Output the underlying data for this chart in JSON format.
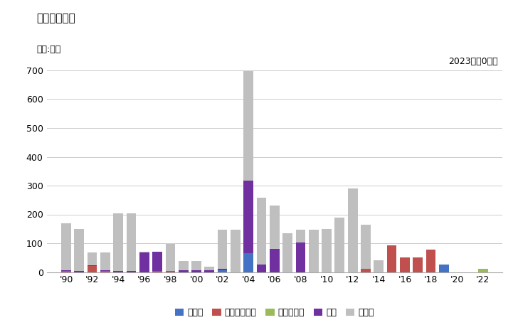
{
  "title": "輸出量の推移",
  "unit_label": "単位:トン",
  "annotation": "2023年：0トン",
  "years": [
    1990,
    1991,
    1992,
    1993,
    1994,
    1995,
    1996,
    1997,
    1998,
    1999,
    2000,
    2001,
    2002,
    2003,
    2004,
    2005,
    2006,
    2007,
    2008,
    2009,
    2010,
    2011,
    2012,
    2013,
    2014,
    2015,
    2016,
    2017,
    2018,
    2019,
    2020,
    2021,
    2022
  ],
  "categories": [
    "インド",
    "インドネシア",
    "カメルーン",
    "タイ",
    "その他"
  ],
  "colors": [
    "#4472C4",
    "#C0504D",
    "#9BBB59",
    "#7030A0",
    "#BFBFBF"
  ],
  "data": {
    "インド": [
      0,
      0,
      0,
      0,
      0,
      0,
      0,
      0,
      0,
      0,
      0,
      0,
      5,
      0,
      65,
      0,
      0,
      0,
      0,
      0,
      0,
      0,
      0,
      0,
      0,
      0,
      0,
      0,
      0,
      25,
      0,
      0,
      0
    ],
    "インドネシア": [
      3,
      0,
      20,
      3,
      0,
      0,
      0,
      3,
      3,
      0,
      0,
      0,
      0,
      0,
      0,
      0,
      0,
      0,
      0,
      0,
      0,
      0,
      0,
      10,
      0,
      93,
      50,
      50,
      78,
      0,
      0,
      0,
      0
    ],
    "カメルーン": [
      0,
      0,
      0,
      0,
      0,
      0,
      0,
      0,
      0,
      0,
      0,
      0,
      0,
      0,
      0,
      0,
      0,
      0,
      0,
      0,
      0,
      0,
      0,
      0,
      0,
      0,
      0,
      0,
      0,
      0,
      0,
      0,
      12
    ],
    "タイ": [
      3,
      3,
      3,
      3,
      3,
      3,
      68,
      68,
      0,
      5,
      5,
      5,
      5,
      0,
      253,
      27,
      80,
      0,
      103,
      0,
      0,
      0,
      0,
      0,
      0,
      0,
      0,
      0,
      0,
      0,
      0,
      0,
      0
    ],
    "その他": [
      163,
      147,
      45,
      62,
      200,
      200,
      3,
      0,
      95,
      33,
      33,
      13,
      138,
      148,
      380,
      230,
      152,
      135,
      45,
      148,
      150,
      190,
      290,
      155,
      40,
      0,
      0,
      0,
      0,
      0,
      0,
      0,
      0
    ]
  },
  "ylim": [
    0,
    700
  ],
  "yticks": [
    0,
    100,
    200,
    300,
    400,
    500,
    600,
    700
  ],
  "tick_years": [
    1990,
    1992,
    1994,
    1996,
    1998,
    2000,
    2002,
    2004,
    2006,
    2008,
    2010,
    2012,
    2014,
    2016,
    2018,
    2020,
    2022
  ],
  "tick_labels": [
    "'90",
    "'92",
    "'94",
    "'96",
    "'98",
    "'00",
    "'02",
    "'04",
    "'06",
    "'08",
    "'10",
    "'12",
    "'14",
    "'16",
    "'18",
    "'20",
    "'22"
  ]
}
